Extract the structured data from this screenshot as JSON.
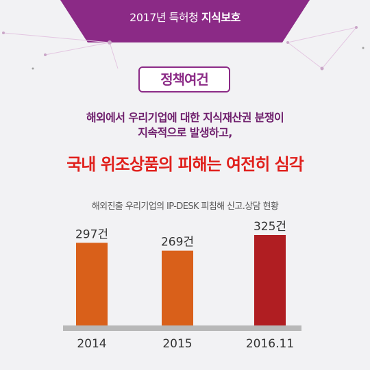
{
  "header": {
    "prefix": "2017년 특허청",
    "emphasis": "지식보호"
  },
  "badge": "정책여건",
  "lead": {
    "line1": "해외에서 우리기업에 대한 지식재산권 분쟁이",
    "line2": "지속적으로 발생하고,"
  },
  "headline": "국내 위조상품의 피해는 여전히 심각",
  "colors": {
    "banner": "#8b2a86",
    "bar_regular": "#d9601a",
    "bar_highlight": "#b01e22",
    "headline": "#e0201c",
    "axis": "#b8b8b8"
  },
  "chart_data": {
    "type": "bar",
    "title": "해외진출 우리기업의 IP-DESK 피침해 신고.상담 현황",
    "categories": [
      "2014",
      "2015",
      "2016.11"
    ],
    "values": [
      297,
      269,
      325
    ],
    "labels": [
      "297건",
      "269건",
      "325건"
    ],
    "highlight_index": 2,
    "xlabel": "",
    "ylabel": "",
    "ylim": [
      0,
      325
    ],
    "grid": false,
    "legend": "none"
  }
}
